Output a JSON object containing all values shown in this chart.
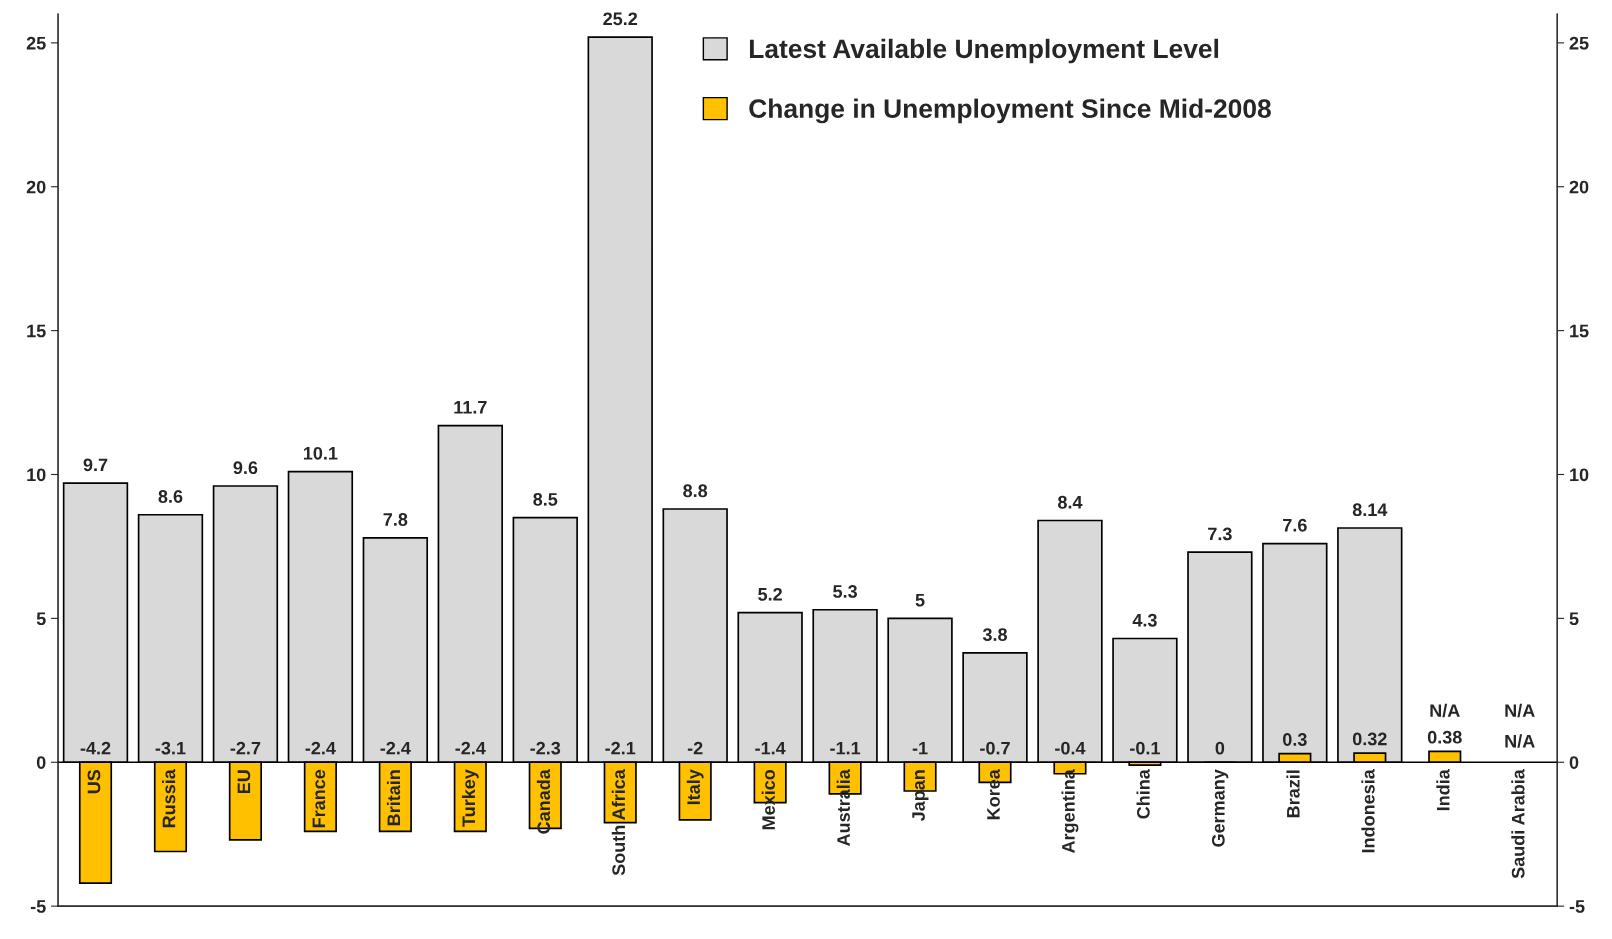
{
  "chart_data": {
    "type": "bar",
    "categories": [
      "US",
      "Russia",
      "EU",
      "France",
      "Britain",
      "Turkey",
      "Canada",
      "South Africa",
      "Italy",
      "Mexico",
      "Australia",
      "Japan",
      "Korea",
      "Argentina",
      "China",
      "Germany",
      "Brazil",
      "Indonesia",
      "India",
      "Saudi Arabia"
    ],
    "series": [
      {
        "name": "Latest Available Unemployment Level",
        "color": "#d9d9d9",
        "values": [
          9.7,
          8.6,
          9.6,
          10.1,
          7.8,
          11.7,
          8.5,
          25.2,
          8.8,
          5.2,
          5.3,
          5,
          3.8,
          8.4,
          4.3,
          7.3,
          7.6,
          8.14,
          null,
          null
        ],
        "value_labels": [
          "9.7",
          "8.6",
          "9.6",
          "10.1",
          "7.8",
          "11.7",
          "8.5",
          "25.2",
          "8.8",
          "5.2",
          "5.3",
          "5",
          "3.8",
          "8.4",
          "4.3",
          "7.3",
          "7.6",
          "8.14",
          "N/A",
          "N/A"
        ]
      },
      {
        "name": "Change in Unemployment Since Mid-2008",
        "color": "#ffc000",
        "values": [
          -4.2,
          -3.1,
          -2.7,
          -2.4,
          -2.4,
          -2.4,
          -2.3,
          -2.1,
          -2,
          -1.4,
          -1.1,
          -1,
          -0.7,
          -0.4,
          -0.1,
          0,
          0.3,
          0.32,
          0.38,
          null
        ],
        "value_labels": [
          "-4.2",
          "-3.1",
          "-2.7",
          "-2.4",
          "-2.4",
          "-2.4",
          "-2.3",
          "-2.1",
          "-2",
          "-1.4",
          "-1.1",
          "-1",
          "-0.7",
          "-0.4",
          "-0.1",
          "0",
          "0.3",
          "0.32",
          "0.38",
          "N/A"
        ]
      }
    ],
    "ylim": [
      -5,
      26
    ],
    "yticks": [
      -5,
      0,
      5,
      10,
      15,
      20,
      25
    ],
    "y2lim": [
      -5,
      26
    ],
    "y2ticks": [
      -5,
      0,
      5,
      10,
      15,
      20,
      25
    ],
    "grid": false,
    "legend": "top"
  }
}
